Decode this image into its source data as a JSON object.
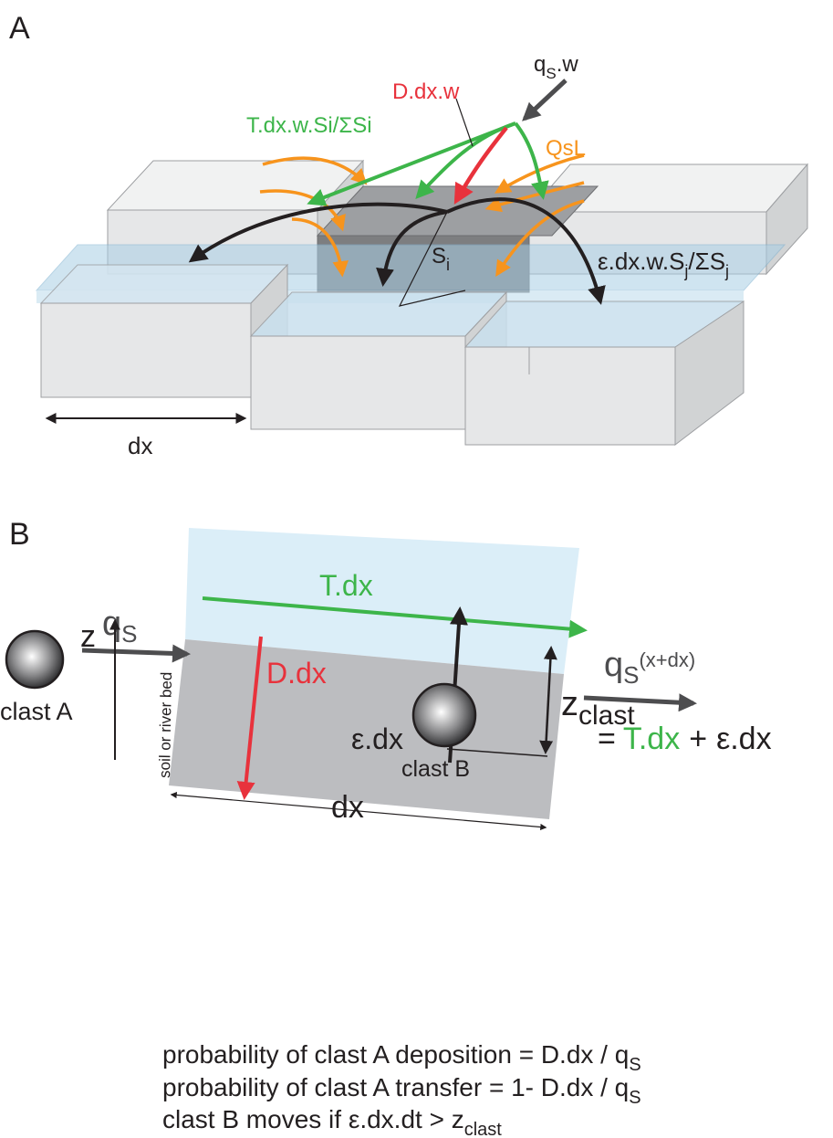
{
  "panel_a": {
    "letter": "A",
    "labels": {
      "qs_w_q": "q",
      "qs_w_sub": "S",
      "qs_w_rest": ".w",
      "d_dx_w": "D.dx.w",
      "t_dx_w": "T.dx.w.Si/ΣSi",
      "qsl": "QsL",
      "si_s": "S",
      "si_sub": "i",
      "eps_main": "ε.dx.w.S",
      "eps_sub1": "j",
      "eps_mid": "/ΣS",
      "eps_sub2": "j",
      "dx": "dx"
    }
  },
  "panel_b": {
    "letter": "B",
    "labels": {
      "t_dx": "T.dx",
      "qs_q": "q",
      "qs_sub": "S",
      "d_dx": "D.dx",
      "clast_a": "clast A",
      "qs_out_q": "q",
      "qs_out_sub": "S",
      "qs_out_sup": "(x+dx)",
      "eq_equals": "=",
      "eq_t": "T.dx",
      "eq_plus": "+",
      "eq_eps": "ε.dx",
      "eps_dx": "ε.dx",
      "z": "z",
      "soil": "soil or river bed",
      "z_clast": "z",
      "z_clast_sub": "clast",
      "clast_b": "clast B",
      "dx": "dx"
    },
    "notes": [
      {
        "text": "probability of clast A deposition = D.dx / q",
        "sub": "S"
      },
      {
        "text": "probability of clast A transfer = 1- D.dx / q",
        "sub": "S"
      },
      {
        "text": "clast B moves if ε.dx.dt > z",
        "sub": "clast"
      }
    ]
  },
  "colors": {
    "green": "#3db54a",
    "red": "#e8323c",
    "orange": "#f7941d",
    "black": "#231f20",
    "gray_arrow": "#4d4d4f",
    "water": "#dbeef8",
    "bed": "#bcbdc0",
    "box_face": "#e6e7e8",
    "box_top": "#f1f2f2",
    "box_dark": "#7d7e80",
    "water_box": "#a9cfe5"
  }
}
